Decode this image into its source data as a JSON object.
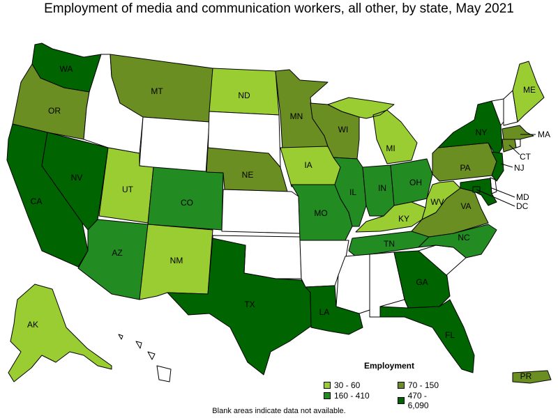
{
  "title": "Employment of media and communication workers, all other, by state, May 2021",
  "footnote": "Blank areas indicate data not available.",
  "colors": {
    "none": "#ffffff",
    "c1": "#9acd32",
    "c2": "#6b8e23",
    "c3": "#228b22",
    "c4": "#006400"
  },
  "legend": {
    "title": "Employment",
    "items": [
      {
        "label": "30 - 60",
        "class": "c1"
      },
      {
        "label": "70 - 150",
        "class": "c2"
      },
      {
        "label": "160 - 410",
        "class": "c3"
      },
      {
        "label": "470 - 6,090",
        "class": "c4"
      }
    ]
  },
  "chart_data": {
    "type": "choropleth",
    "title": "Employment of media and communication workers, all other, by state, May 2021",
    "legend_placement": "bottom-right",
    "bins": [
      "30 - 60",
      "70 - 150",
      "160 - 410",
      "470 - 6,090"
    ],
    "states": [
      {
        "abbr": "WA",
        "bin": "470 - 6,090"
      },
      {
        "abbr": "OR",
        "bin": "70 - 150"
      },
      {
        "abbr": "CA",
        "bin": "470 - 6,090"
      },
      {
        "abbr": "NV",
        "bin": "470 - 6,090"
      },
      {
        "abbr": "ID",
        "bin": null
      },
      {
        "abbr": "MT",
        "bin": "70 - 150"
      },
      {
        "abbr": "WY",
        "bin": null
      },
      {
        "abbr": "UT",
        "bin": "30 - 60"
      },
      {
        "abbr": "AZ",
        "bin": "160 - 410"
      },
      {
        "abbr": "CO",
        "bin": "160 - 410"
      },
      {
        "abbr": "NM",
        "bin": "30 - 60"
      },
      {
        "abbr": "ND",
        "bin": "30 - 60"
      },
      {
        "abbr": "SD",
        "bin": null
      },
      {
        "abbr": "NE",
        "bin": "70 - 150"
      },
      {
        "abbr": "KS",
        "bin": null
      },
      {
        "abbr": "OK",
        "bin": null
      },
      {
        "abbr": "TX",
        "bin": "470 - 6,090"
      },
      {
        "abbr": "MN",
        "bin": "70 - 150"
      },
      {
        "abbr": "IA",
        "bin": "30 - 60"
      },
      {
        "abbr": "MO",
        "bin": "160 - 410"
      },
      {
        "abbr": "AR",
        "bin": null
      },
      {
        "abbr": "LA",
        "bin": "470 - 6,090"
      },
      {
        "abbr": "WI",
        "bin": "70 - 150"
      },
      {
        "abbr": "IL",
        "bin": "160 - 410"
      },
      {
        "abbr": "MI",
        "bin": "30 - 60"
      },
      {
        "abbr": "IN",
        "bin": "160 - 410"
      },
      {
        "abbr": "OH",
        "bin": "160 - 410"
      },
      {
        "abbr": "KY",
        "bin": "30 - 60"
      },
      {
        "abbr": "TN",
        "bin": "160 - 410"
      },
      {
        "abbr": "MS",
        "bin": null
      },
      {
        "abbr": "AL",
        "bin": null
      },
      {
        "abbr": "GA",
        "bin": "470 - 6,090"
      },
      {
        "abbr": "FL",
        "bin": "470 - 6,090"
      },
      {
        "abbr": "SC",
        "bin": null
      },
      {
        "abbr": "NC",
        "bin": "160 - 410"
      },
      {
        "abbr": "VA",
        "bin": "70 - 150"
      },
      {
        "abbr": "WV",
        "bin": "30 - 60"
      },
      {
        "abbr": "PA",
        "bin": "70 - 150"
      },
      {
        "abbr": "NY",
        "bin": "470 - 6,090"
      },
      {
        "abbr": "VT",
        "bin": null
      },
      {
        "abbr": "NH",
        "bin": null
      },
      {
        "abbr": "ME",
        "bin": "30 - 60"
      },
      {
        "abbr": "MA",
        "bin": "70 - 150"
      },
      {
        "abbr": "CT",
        "bin": "70 - 150"
      },
      {
        "abbr": "RI",
        "bin": null
      },
      {
        "abbr": "NJ",
        "bin": "470 - 6,090"
      },
      {
        "abbr": "DE",
        "bin": null
      },
      {
        "abbr": "MD",
        "bin": "470 - 6,090"
      },
      {
        "abbr": "DC",
        "bin": "470 - 6,090"
      },
      {
        "abbr": "AK",
        "bin": "30 - 60"
      },
      {
        "abbr": "HI",
        "bin": null
      },
      {
        "abbr": "PR",
        "bin": "70 - 150"
      }
    ]
  },
  "labels": {
    "WA": "WA",
    "OR": "OR",
    "CA": "CA",
    "NV": "NV",
    "MT": "MT",
    "UT": "UT",
    "AZ": "AZ",
    "CO": "CO",
    "NM": "NM",
    "ND": "ND",
    "NE": "NE",
    "TX": "TX",
    "MN": "MN",
    "IA": "IA",
    "MO": "MO",
    "LA": "LA",
    "WI": "WI",
    "IL": "IL",
    "MI": "MI",
    "IN": "IN",
    "OH": "OH",
    "KY": "KY",
    "TN": "TN",
    "GA": "GA",
    "FL": "FL",
    "NC": "NC",
    "VA": "VA",
    "WV": "WV",
    "PA": "PA",
    "NY": "NY",
    "ME": "ME",
    "MA": "MA",
    "CT": "CT",
    "NJ": "NJ",
    "MD": "MD",
    "DC": "DC",
    "AK": "AK",
    "PR": "PR"
  }
}
